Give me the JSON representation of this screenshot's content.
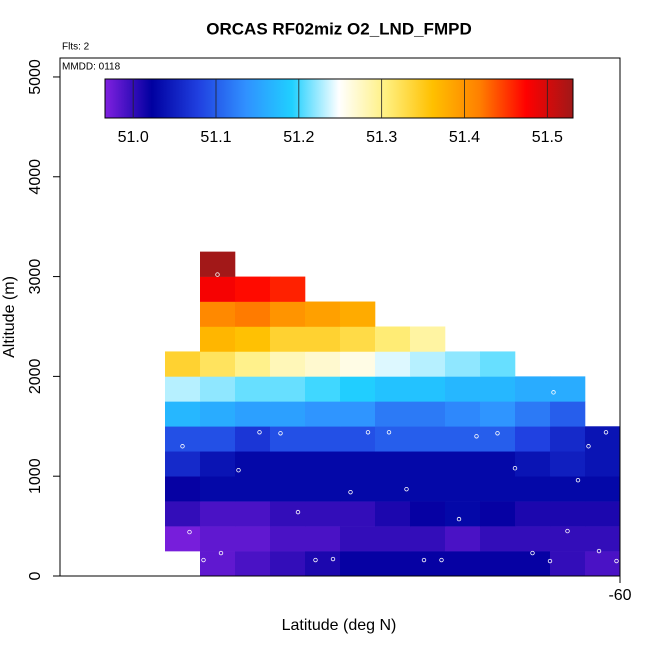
{
  "chart_data": {
    "type": "heatmap",
    "title": "ORCAS RF02miz O2_LND_FMPD",
    "subtitle": "Flts: 2",
    "annotation": "MMDD: 0118",
    "xlabel": "Latitude (deg N)",
    "ylabel": "Altitude (m)",
    "xlim": [
      -76,
      -60
    ],
    "xticks": [
      -60
    ],
    "ylim": [
      0,
      5190
    ],
    "yticks": [
      0,
      1000,
      2000,
      3000,
      4000,
      5000
    ],
    "zlim": [
      50.966,
      51.531
    ],
    "zticks": [
      {
        "value": 51.0,
        "label": "51.0"
      },
      {
        "value": 51.1,
        "label": "51.1"
      },
      {
        "value": 51.2,
        "label": "51.2"
      },
      {
        "value": 51.3,
        "label": "51.3"
      },
      {
        "value": 51.4,
        "label": "51.4"
      },
      {
        "value": 51.5,
        "label": "51.5"
      }
    ],
    "colorscale": [
      "#8020e0",
      "#0000a0",
      "#2040e0",
      "#3090ff",
      "#20d0ff",
      "#ffffff",
      "#fff080",
      "#ffc000",
      "#ff8000",
      "#ff0000",
      "#a01818"
    ],
    "x": [
      -72.5,
      -71.5,
      -70.5,
      -69.5,
      -68.5,
      -67.5,
      -66.5,
      -65.5,
      -64.5,
      -63.5,
      -62.5,
      -61.5,
      -60.5
    ],
    "y": [
      125,
      375,
      625,
      875,
      1125,
      1375,
      1625,
      1875,
      2125,
      2375,
      2625,
      2875,
      3125
    ],
    "z": [
      [
        null,
        50.98,
        50.99,
        51.0,
        51.01,
        51.02,
        51.02,
        51.02,
        51.02,
        51.02,
        51.02,
        51.0,
        50.99
      ],
      [
        50.97,
        50.98,
        50.98,
        50.99,
        50.99,
        51.0,
        51.0,
        51.0,
        50.99,
        51.0,
        51.0,
        51.0,
        51.0
      ],
      [
        51.0,
        50.99,
        50.99,
        51.0,
        51.0,
        51.0,
        51.01,
        51.02,
        51.03,
        51.02,
        51.01,
        51.01,
        51.01
      ],
      [
        51.02,
        51.03,
        51.03,
        51.03,
        51.03,
        51.03,
        51.03,
        51.03,
        51.03,
        51.03,
        51.03,
        51.03,
        51.03
      ],
      [
        51.06,
        51.04,
        51.03,
        51.03,
        51.03,
        51.03,
        51.03,
        51.03,
        51.03,
        51.03,
        51.04,
        51.05,
        51.04
      ],
      [
        51.09,
        51.09,
        51.07,
        51.09,
        51.09,
        51.09,
        51.1,
        51.1,
        51.1,
        51.1,
        51.08,
        51.06,
        51.04
      ],
      [
        51.17,
        51.16,
        51.15,
        51.15,
        51.14,
        51.14,
        51.12,
        51.12,
        51.13,
        51.14,
        51.12,
        51.1,
        null
      ],
      [
        51.23,
        51.22,
        51.21,
        51.21,
        51.2,
        51.19,
        51.18,
        51.18,
        51.17,
        51.17,
        51.16,
        51.16,
        null
      ],
      [
        51.34,
        51.32,
        51.3,
        51.28,
        51.27,
        51.26,
        51.24,
        51.23,
        51.22,
        51.21,
        null,
        null,
        null
      ],
      [
        null,
        51.37,
        51.36,
        51.34,
        51.34,
        51.33,
        51.31,
        51.29,
        null,
        null,
        null,
        null,
        null
      ],
      [
        null,
        51.41,
        51.42,
        51.4,
        51.39,
        51.38,
        null,
        null,
        null,
        null,
        null,
        null,
        null
      ],
      [
        null,
        51.48,
        51.47,
        51.46,
        null,
        null,
        null,
        null,
        null,
        null,
        null,
        null,
        null
      ],
      [
        null,
        51.53,
        null,
        null,
        null,
        null,
        null,
        null,
        null,
        null,
        null,
        null,
        null
      ]
    ],
    "points": {
      "color": "#ffffff",
      "x": [
        -71.5,
        -72.5,
        -70.3,
        -69.7,
        -67.2,
        -66.6,
        -64.1,
        -63.5,
        -60.4,
        -60.9,
        -61.9,
        -70.9,
        -63.0,
        -61.2,
        -67.7,
        -66.1,
        -69.2,
        -64.6,
        -72.3,
        -61.5,
        -71.4,
        -60.6,
        -71.9,
        -68.7,
        -68.2,
        -65.6,
        -65.1,
        -62.5,
        -62.0,
        -60.1
      ],
      "y": [
        3020,
        1300,
        1440,
        1430,
        1440,
        1440,
        1400,
        1430,
        1440,
        1300,
        1840,
        1060,
        1080,
        960,
        840,
        870,
        640,
        570,
        440,
        450,
        230,
        250,
        160,
        160,
        170,
        160,
        160,
        230,
        150,
        150
      ]
    }
  }
}
